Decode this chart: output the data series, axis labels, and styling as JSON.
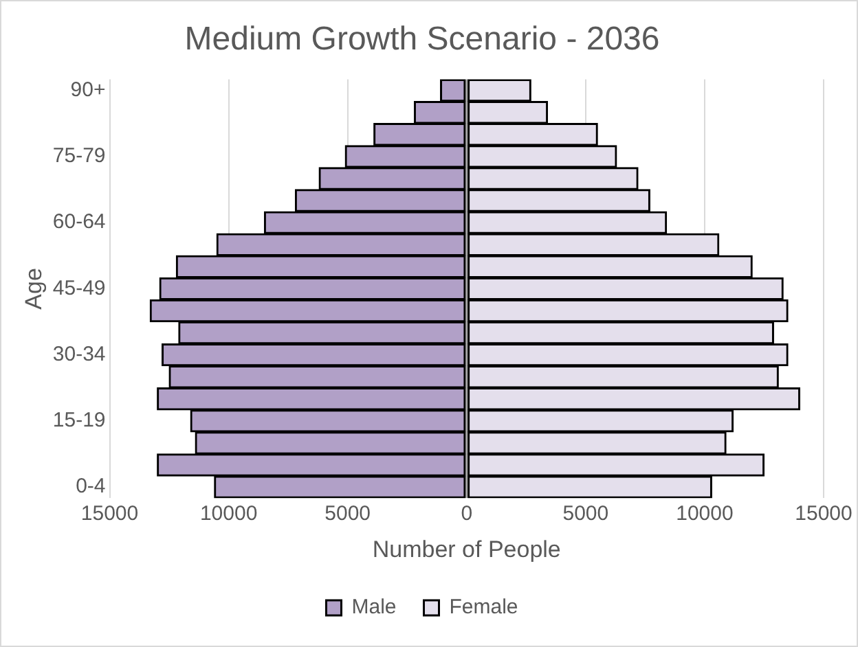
{
  "chart_data": {
    "type": "bar",
    "orientation": "horizontal",
    "stacked": true,
    "title": "Medium Growth Scenario - 2036",
    "xlabel": "Number of People",
    "ylabel": "Age",
    "categories": [
      "90+",
      null,
      null,
      "75-79",
      null,
      null,
      "60-64",
      null,
      null,
      "45-49",
      null,
      null,
      "30-34",
      null,
      null,
      "15-19",
      null,
      null,
      "0-4"
    ],
    "series": [
      {
        "name": "Male",
        "color": "#b1a0c7",
        "values": [
          -1100,
          -2200,
          -3900,
          -5100,
          -6200,
          -7200,
          -8500,
          -10500,
          -12200,
          -12900,
          -13300,
          -12100,
          -12800,
          -12500,
          -13000,
          -11600,
          -11400,
          -13000,
          -10600
        ]
      },
      {
        "name": "Female",
        "color": "#e4dfec",
        "values": [
          2700,
          3400,
          5500,
          6300,
          7200,
          7700,
          8400,
          10600,
          12000,
          13300,
          13500,
          12900,
          13500,
          13100,
          14000,
          11200,
          10900,
          12500,
          10300
        ]
      }
    ],
    "xlim": [
      -15000,
      15000
    ],
    "xticks": [
      {
        "value": -15000,
        "label": "15000"
      },
      {
        "value": -10000,
        "label": "10000"
      },
      {
        "value": -5000,
        "label": "5000"
      },
      0,
      5000,
      10000,
      15000
    ],
    "grid": "x",
    "legend": "bottom"
  }
}
